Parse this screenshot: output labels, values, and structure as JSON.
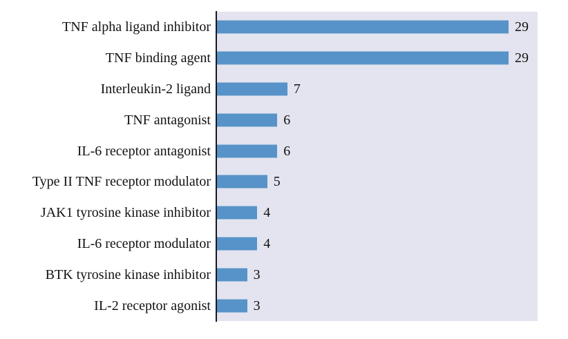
{
  "chart_data": {
    "type": "bar",
    "orientation": "horizontal",
    "title": "",
    "xlabel": "",
    "ylabel": "",
    "categories": [
      "TNF alpha ligand inhibitor",
      "TNF binding agent",
      "Interleukin-2 ligand",
      "TNF antagonist",
      "IL-6 receptor antagonist",
      "Type II TNF receptor modulator",
      "JAK1 tyrosine kinase inhibitor",
      "IL-6 receptor modulator",
      "BTK tyrosine kinase inhibitor",
      "IL-2 receptor agonist"
    ],
    "values": [
      29,
      29,
      7,
      6,
      6,
      5,
      4,
      4,
      3,
      3
    ],
    "value_labels_shown": true,
    "grid": false,
    "legend": false,
    "axis_ticks_shown": false,
    "colors": {
      "bar": "#5793c8",
      "plot_background": "#e3e4ef",
      "axis_line": "#17171f",
      "text": "#121212",
      "page_background": "#ffffff"
    }
  }
}
